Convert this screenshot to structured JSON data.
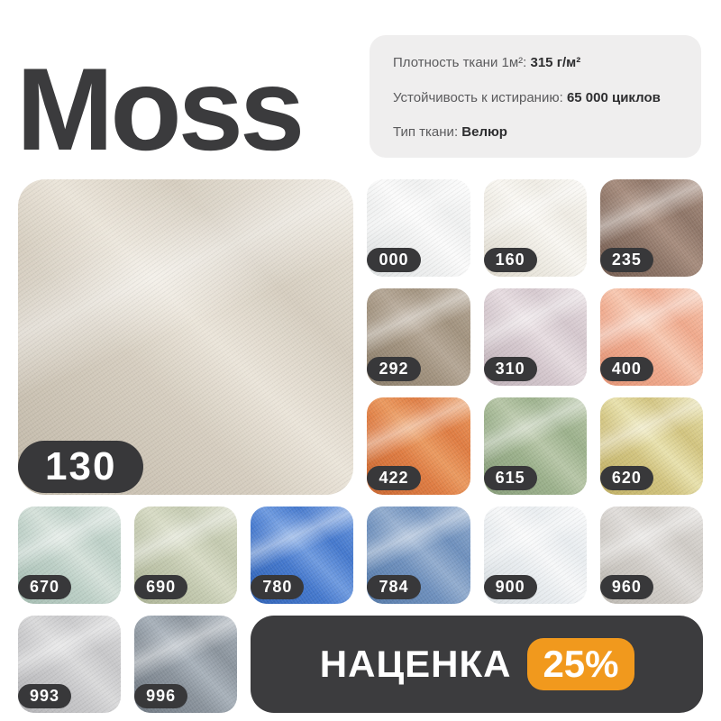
{
  "page": {
    "title": "Moss"
  },
  "specs": {
    "lines": [
      {
        "label": "Плотность ткани 1м²:",
        "value": "315 г/м²"
      },
      {
        "label": "Устойчивость к истиранию:",
        "value": "65 000 циклов"
      },
      {
        "label": "Тип ткани:",
        "value": "Велюр"
      }
    ]
  },
  "main_swatch": {
    "code": "130",
    "colors": {
      "light": "#ebe5da",
      "base": "#d6cec0",
      "dark": "#c1b8a8"
    }
  },
  "swatches": [
    {
      "code": "000",
      "colors": {
        "light": "#fbfbfb",
        "base": "#f0f1f1",
        "dark": "#dfe2e3"
      }
    },
    {
      "code": "160",
      "colors": {
        "light": "#f9f7f2",
        "base": "#efece4",
        "dark": "#ddd8cc"
      }
    },
    {
      "code": "235",
      "colors": {
        "light": "#a78d7e",
        "base": "#8f7668",
        "dark": "#745c50"
      }
    },
    {
      "code": "292",
      "colors": {
        "light": "#b5a796",
        "base": "#a2937f",
        "dark": "#8a7c69"
      }
    },
    {
      "code": "310",
      "colors": {
        "light": "#e7dde1",
        "base": "#d5c8ce",
        "dark": "#bfb1b8"
      }
    },
    {
      "code": "400",
      "colors": {
        "light": "#f8c9b2",
        "base": "#f0a98c",
        "dark": "#e39273"
      }
    },
    {
      "code": "422",
      "colors": {
        "light": "#eb9a60",
        "base": "#df7c42",
        "dark": "#c9662f"
      }
    },
    {
      "code": "615",
      "colors": {
        "light": "#b8c7a8",
        "base": "#9cb18c",
        "dark": "#869c79"
      }
    },
    {
      "code": "620",
      "colors": {
        "light": "#e9e2ae",
        "base": "#d2c47f",
        "dark": "#bfae62"
      }
    },
    {
      "code": "670",
      "colors": {
        "light": "#d6e2db",
        "base": "#bdd0c7",
        "dark": "#a4bcb1"
      }
    },
    {
      "code": "690",
      "colors": {
        "light": "#d8dcc6",
        "base": "#c4cab0",
        "dark": "#abb294"
      }
    },
    {
      "code": "780",
      "colors": {
        "light": "#6f9be0",
        "base": "#4478cd",
        "dark": "#2f62b6"
      }
    },
    {
      "code": "784",
      "colors": {
        "light": "#93adcf",
        "base": "#6e90bd",
        "dark": "#5479a8"
      }
    },
    {
      "code": "900",
      "colors": {
        "light": "#f7f8f9",
        "base": "#e9edf0",
        "dark": "#d8dee2"
      }
    },
    {
      "code": "960",
      "colors": {
        "light": "#e1dedb",
        "base": "#d0ccc7",
        "dark": "#bcb8b1"
      }
    },
    {
      "code": "993",
      "colors": {
        "light": "#dadadb",
        "base": "#c8c8ca",
        "dark": "#b2b2b5"
      }
    },
    {
      "code": "996",
      "colors": {
        "light": "#a9b2bb",
        "base": "#8b949d",
        "dark": "#6f7882"
      }
    }
  ],
  "promo": {
    "label": "НАЦЕНКА",
    "badge": "25%",
    "badge_color": "#f1991d",
    "banner_color": "#3c3c3e"
  }
}
